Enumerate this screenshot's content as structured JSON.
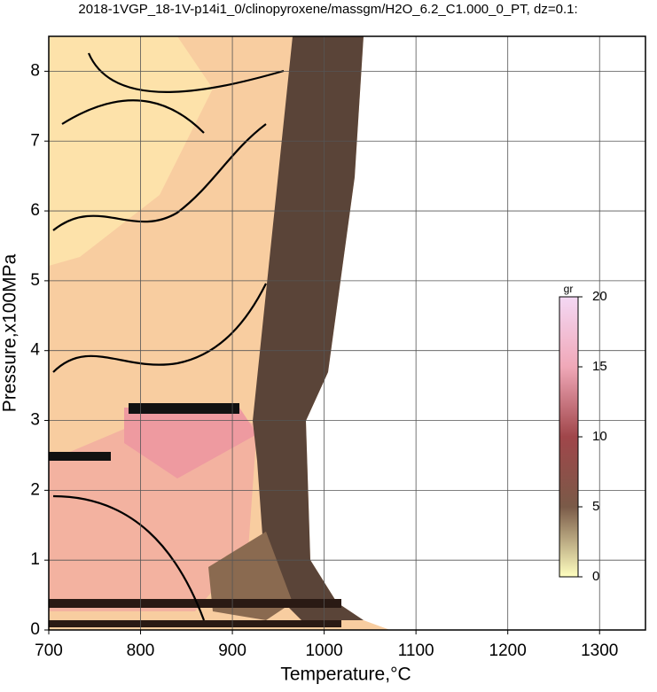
{
  "chart_data": {
    "type": "contour",
    "title": "2018-1VGP_18-1V-p14i1_0/clinopyroxene/massgm/H2O_6.2_C1.000_0_PT, dz=0.1:",
    "x_label": "Temperature,°C",
    "y_label": "Pressure,x100MPa",
    "xlim": [
      700,
      1350
    ],
    "xticks": [
      700,
      800,
      900,
      1000,
      1100,
      1200,
      1300
    ],
    "ylim": [
      0,
      8.5
    ],
    "yticks": [
      0,
      1,
      2,
      3,
      4,
      5,
      6,
      7,
      8
    ],
    "grid": true,
    "colorbar": {
      "label": "gr",
      "lim": [
        0,
        20
      ],
      "ticks": [
        0,
        5,
        10,
        15,
        20
      ],
      "colors": [
        "#ffffc0",
        "#7a5a48",
        "#a0464a",
        "#f0a8b8",
        "#f4d8f4"
      ]
    }
  }
}
